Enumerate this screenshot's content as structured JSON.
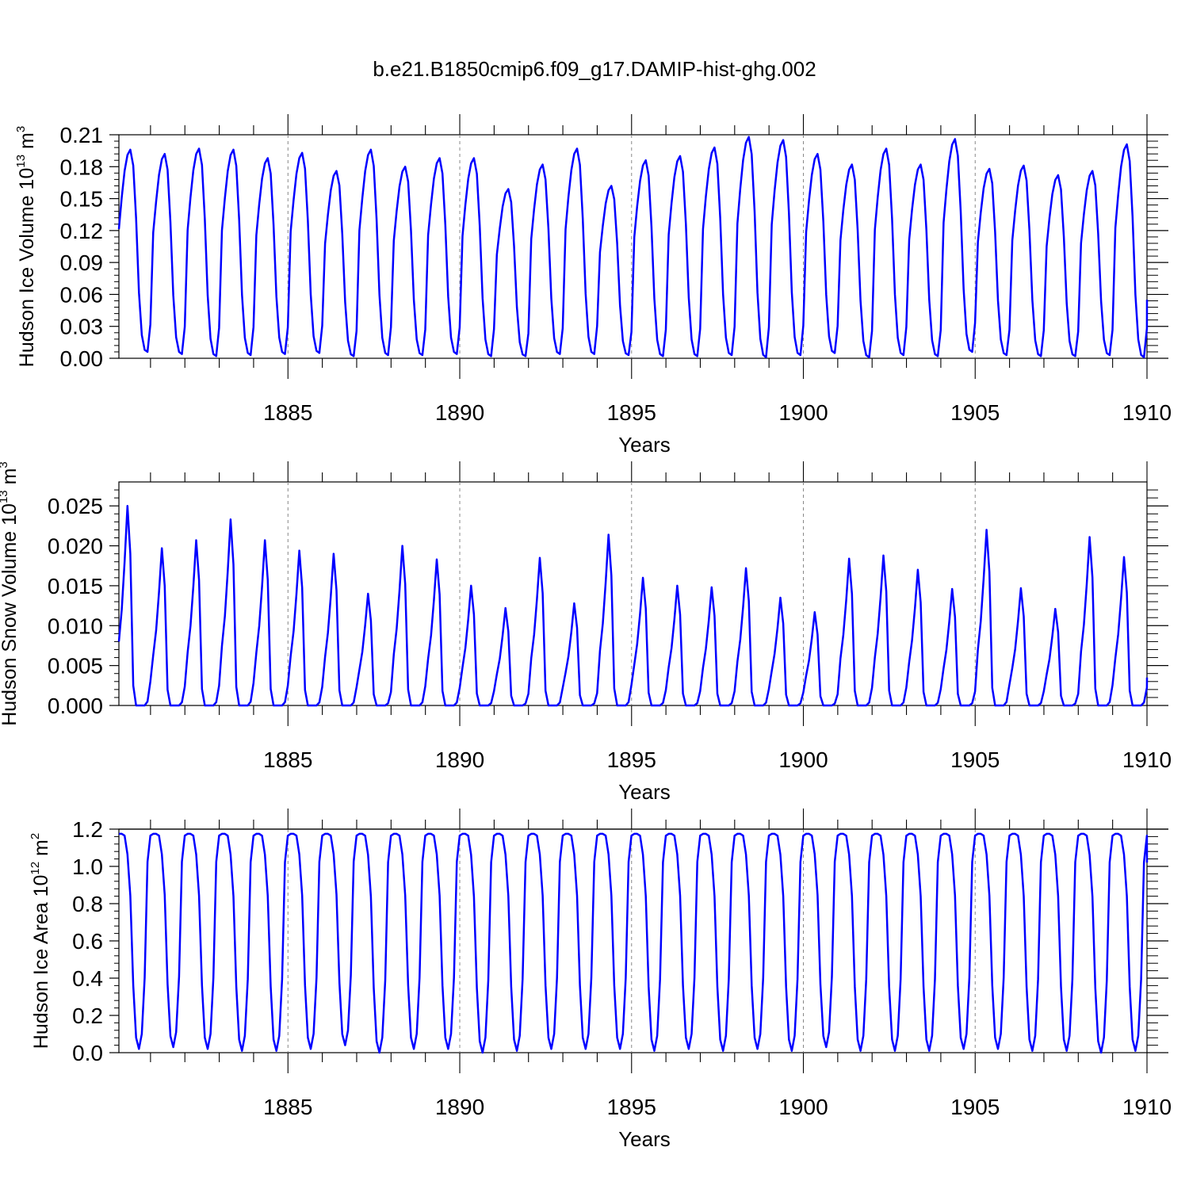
{
  "figure": {
    "title": "b.e21.B1850cmip6.f09_g17.DAMIP-hist-ghg.002",
    "line_color": "#0000ff",
    "grid_color": "#888888"
  },
  "chart_data": [
    {
      "type": "line",
      "title": "b.e21.B1850cmip6.f09_g17.DAMIP-hist-ghg.002",
      "ylabel_main": "Hudson Ice Volume 10",
      "ylabel_exp": "13",
      "ylabel_unit": " m",
      "ylabel_unit_exp": "3",
      "xlabel": "Years",
      "xlim": [
        1880.08,
        1910.0
      ],
      "ylim": [
        0.0,
        0.21
      ],
      "yticks": [
        0.0,
        0.03,
        0.06,
        0.09,
        0.12,
        0.15,
        0.18,
        0.21
      ],
      "ytick_labels": [
        "0.00",
        "0.03",
        "0.06",
        "0.09",
        "0.12",
        "0.15",
        "0.18",
        "0.21"
      ],
      "xticks": [
        1885,
        1890,
        1895,
        1900,
        1905,
        1910
      ],
      "xtick_labels": [
        "1885",
        "1890",
        "1895",
        "1900",
        "1905",
        "1910"
      ],
      "grid": "vertical dashed at 1885, 1890, 1895, 1900, 1905",
      "series_name": "Hudson Ice Volume",
      "annual_profile": [
        0.12,
        0.15,
        0.175,
        0.19,
        0.195,
        0.18,
        0.13,
        0.06,
        0.02,
        0.006,
        0.004,
        0.03
      ],
      "annual_peaks": [
        0.196,
        0.192,
        0.197,
        0.196,
        0.188,
        0.193,
        0.176,
        0.196,
        0.18,
        0.188,
        0.188,
        0.159,
        0.182,
        0.197,
        0.162,
        0.186,
        0.19,
        0.198,
        0.208,
        0.205,
        0.192,
        0.182,
        0.197,
        0.182,
        0.206,
        0.178,
        0.181,
        0.172,
        0.176,
        0.201
      ],
      "annual_minima": [
        0.006,
        0.004,
        0.002,
        0.003,
        0.004,
        0.005,
        0.002,
        0.003,
        0.003,
        0.004,
        0.002,
        0.002,
        0.004,
        0.004,
        0.003,
        0.002,
        0.002,
        0.003,
        0.001,
        0.003,
        0.005,
        0.001,
        0.003,
        0.002,
        0.006,
        0.003,
        0.002,
        0.002,
        0.003,
        0.001
      ],
      "end_value": 0.055
    },
    {
      "type": "line",
      "ylabel_main": "Hudson Snow Volume 10",
      "ylabel_exp": "13",
      "ylabel_unit": " m",
      "ylabel_unit_exp": "3",
      "xlabel": "Years",
      "xlim": [
        1880.08,
        1910.0
      ],
      "ylim": [
        0.0,
        0.028
      ],
      "yticks": [
        0.0,
        0.005,
        0.01,
        0.015,
        0.02,
        0.025
      ],
      "ytick_labels": [
        "0.000",
        "0.005",
        "0.010",
        "0.015",
        "0.020",
        "0.025"
      ],
      "xticks": [
        1885,
        1890,
        1895,
        1900,
        1905,
        1910
      ],
      "xtick_labels": [
        "1885",
        "1890",
        "1895",
        "1900",
        "1905",
        "1910"
      ],
      "grid": "vertical dashed at 1885, 1890, 1895, 1900, 1905",
      "series_name": "Hudson Snow Volume",
      "annual_profile": [
        0.008,
        0.012,
        0.018,
        0.025,
        0.019,
        0.0025,
        0.0,
        0.0,
        0.0,
        0.0,
        0.0005,
        0.003
      ],
      "annual_peaks": [
        0.025,
        0.0197,
        0.0207,
        0.0233,
        0.0207,
        0.0194,
        0.019,
        0.014,
        0.02,
        0.0183,
        0.015,
        0.0122,
        0.0185,
        0.0128,
        0.0214,
        0.016,
        0.015,
        0.0148,
        0.0172,
        0.0135,
        0.0117,
        0.0184,
        0.0188,
        0.017,
        0.0146,
        0.022,
        0.0147,
        0.0121,
        0.0211,
        0.0186
      ],
      "end_value": 0.0035
    },
    {
      "type": "line",
      "ylabel_main": "Hudson Ice Area 10",
      "ylabel_exp": "12",
      "ylabel_unit": " m",
      "ylabel_unit_exp": "2",
      "xlabel": "Years",
      "xlim": [
        1880.08,
        1910.0
      ],
      "ylim": [
        0.0,
        1.2
      ],
      "yticks": [
        0.0,
        0.2,
        0.4,
        0.6,
        0.8,
        1.0,
        1.2
      ],
      "ytick_labels": [
        "0.0",
        "0.2",
        "0.4",
        "0.6",
        "0.8",
        "1.0",
        "1.2"
      ],
      "xticks": [
        1885,
        1890,
        1895,
        1900,
        1905,
        1910
      ],
      "xtick_labels": [
        "1885",
        "1890",
        "1895",
        "1900",
        "1905",
        "1910"
      ],
      "grid": "horizontal line at 1.2; vertical dashed at 1885, 1890, 1895, 1900, 1905",
      "series_name": "Hudson Ice Area",
      "annual_profile": [
        1.17,
        1.17,
        1.16,
        1.06,
        0.84,
        0.36,
        0.08,
        0.02,
        0.1,
        0.4,
        1.02,
        1.16
      ],
      "annual_minima": [
        0.02,
        0.03,
        0.02,
        0.01,
        0.01,
        0.02,
        0.04,
        0.0,
        0.02,
        0.02,
        0.0,
        0.01,
        0.02,
        0.02,
        0.02,
        0.01,
        0.02,
        0.01,
        0.02,
        0.01,
        0.03,
        0.01,
        0.01,
        0.01,
        0.02,
        0.02,
        0.01,
        0.01,
        0.0,
        0.01
      ],
      "end_value": 1.02
    }
  ]
}
